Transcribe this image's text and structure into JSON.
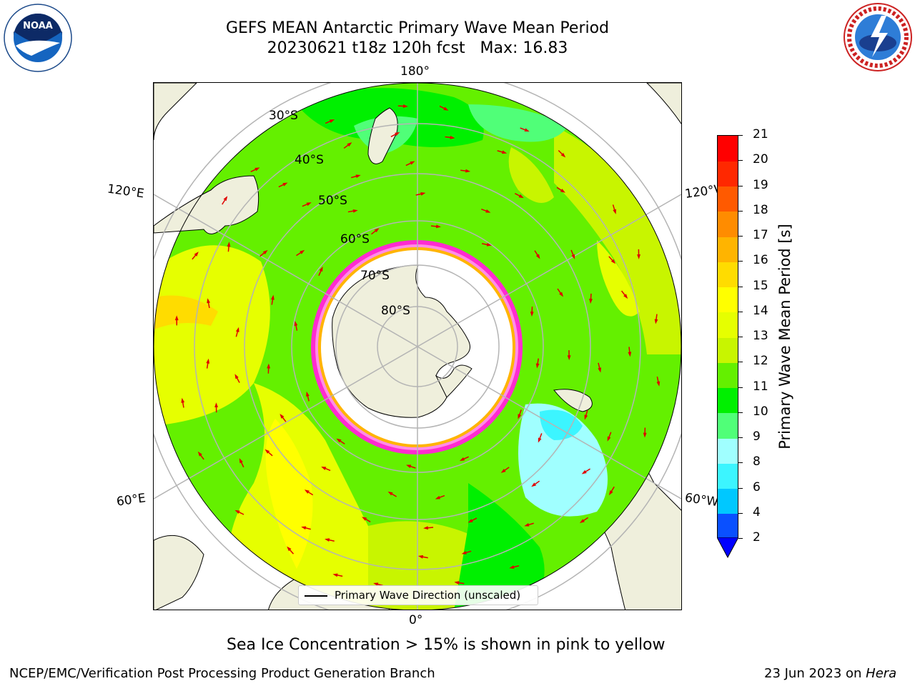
{
  "title": {
    "line1": "GEFS MEAN Antarctic Primary Wave Mean Period",
    "line2": "20230621 t18z 120h fcst   Max: 16.83"
  },
  "logos": {
    "left_icon": "noaa-logo-icon",
    "right_icon": "nws-logo-icon"
  },
  "map": {
    "projection": "south-polar-stereographic",
    "lon_labels": {
      "top": "180°",
      "bottom": "0°",
      "upper_left": "120°E",
      "upper_right": "120°W",
      "lower_left": "60°E",
      "lower_right": "60°W"
    },
    "lat_labels": [
      "30°S",
      "40°S",
      "50°S",
      "60°S",
      "70°S",
      "80°S"
    ],
    "legend": "Primary Wave Direction (unscaled)"
  },
  "colorbar": {
    "label": "Primary Wave Mean Period [s]",
    "ticks": [
      "2",
      "4",
      "6",
      "8",
      "9",
      "10",
      "11",
      "12",
      "13",
      "14",
      "15",
      "16",
      "17",
      "18",
      "19",
      "20",
      "21"
    ],
    "colors": [
      "#0a50ff",
      "#00c8ff",
      "#3cf5ff",
      "#a0ffff",
      "#50ff78",
      "#00f000",
      "#64f000",
      "#c8f500",
      "#e6ff00",
      "#ffff00",
      "#ffdc00",
      "#ffb400",
      "#ff8c00",
      "#ff5a00",
      "#ff2800",
      "#ff0000"
    ],
    "extend_color": "#0000ff"
  },
  "caption": "Sea Ice Concentration > 15% is shown in pink to yellow",
  "footer": {
    "left": "NCEP/EMC/Verification Post Processing Product Generation Branch",
    "right_date": "23 Jun 2023 on ",
    "right_host": "Hera"
  }
}
